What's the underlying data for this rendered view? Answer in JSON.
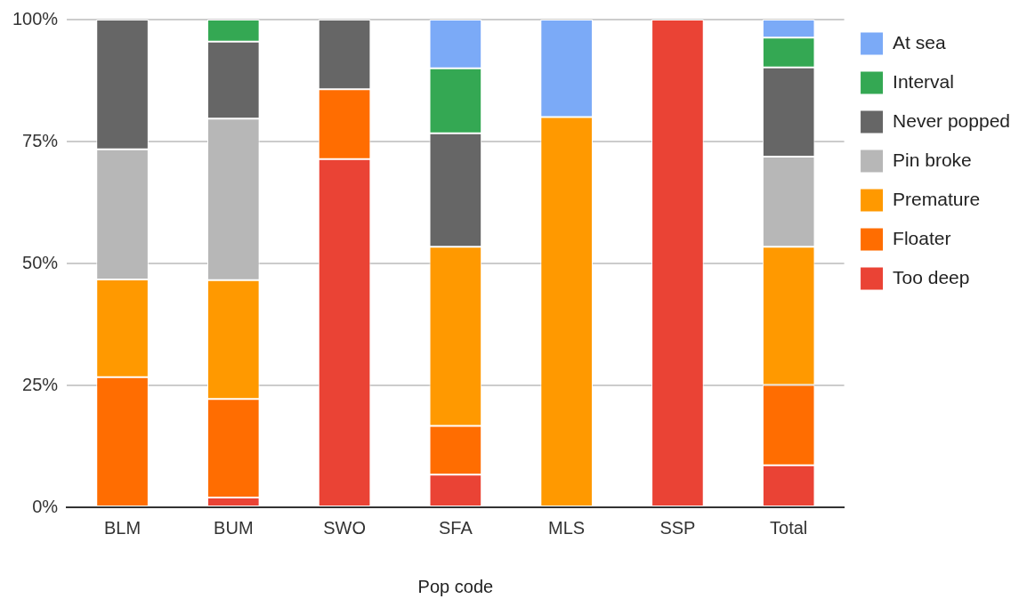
{
  "chart_data": {
    "type": "bar",
    "stacked": true,
    "xlabel": "Pop code",
    "categories": [
      "BLM",
      "BUM",
      "SWO",
      "SFA",
      "MLS",
      "SSP",
      "Total"
    ],
    "series": [
      {
        "name": "Too deep",
        "color": "#ea4335",
        "values": [
          0,
          2,
          71.4,
          6.7,
          0,
          100,
          8.6
        ]
      },
      {
        "name": "Floater",
        "color": "#ff6d01",
        "values": [
          26.7,
          20.2,
          14.3,
          10,
          0,
          0,
          16.5
        ]
      },
      {
        "name": "Premature",
        "color": "#ff9900",
        "values": [
          20,
          24.4,
          0,
          36.7,
          80,
          0,
          28.3
        ]
      },
      {
        "name": "Pin broke",
        "color": "#b7b7b7",
        "values": [
          26.7,
          33.1,
          0,
          0,
          0,
          0,
          18.5
        ]
      },
      {
        "name": "Never popped",
        "color": "#666666",
        "values": [
          26.6,
          15.8,
          14.3,
          23.3,
          0,
          0,
          18.3
        ]
      },
      {
        "name": "Interval",
        "color": "#34a853",
        "values": [
          0,
          4.5,
          0,
          13.3,
          0,
          0,
          6.1
        ]
      },
      {
        "name": "At sea",
        "color": "#7baaf7",
        "values": [
          0,
          0,
          0,
          10,
          20,
          0,
          3.7
        ]
      }
    ],
    "ylim": [
      0,
      100
    ],
    "yticks": [
      {
        "value": 0,
        "label": "0%"
      },
      {
        "value": 25,
        "label": "25%"
      },
      {
        "value": 50,
        "label": "50%"
      },
      {
        "value": 75,
        "label": "75%"
      },
      {
        "value": 100,
        "label": "100%"
      }
    ],
    "grid": "y",
    "legend": "top right"
  }
}
